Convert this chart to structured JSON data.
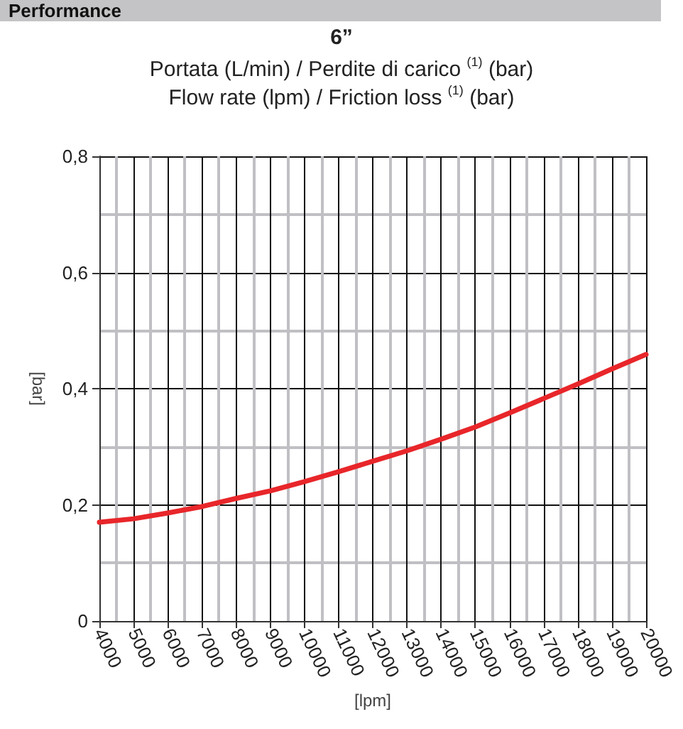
{
  "chart_data": {
    "type": "line",
    "title": "6”",
    "subtitle": "Portata (L/min) / Perdite di carico $^{(1)}$ (bar)\nFlow rate (lpm) / Friction loss $^{(1)}$ (bar)",
    "annotations": [
      "Performance"
    ],
    "xlabel": "[lpm]",
    "ylabel": "[bar]",
    "x": [
      4000,
      5000,
      6000,
      7000,
      8000,
      9000,
      10000,
      11000,
      12000,
      13000,
      14000,
      15000,
      16000,
      17000,
      18000,
      19000,
      20000
    ],
    "series": [
      {
        "color": "#e8262a",
        "values": [
          0.17,
          0.176,
          0.186,
          0.197,
          0.211,
          0.224,
          0.24,
          0.257,
          0.275,
          0.293,
          0.313,
          0.334,
          0.358,
          0.383,
          0.408,
          0.434,
          0.459
        ]
      }
    ],
    "xlim": [
      4000,
      20000
    ],
    "xticks": [
      4000,
      5000,
      6000,
      7000,
      8000,
      9000,
      10000,
      11000,
      12000,
      13000,
      14000,
      15000,
      16000,
      17000,
      18000,
      19000,
      20000
    ],
    "ylim": [
      0,
      0.8
    ],
    "yticks": [
      {
        "value": 0,
        "label": "0"
      },
      {
        "value": 0.2,
        "label": "0,2"
      },
      {
        "value": 0.4,
        "label": "0,4"
      },
      {
        "value": 0.6,
        "label": "0,6"
      },
      {
        "value": 0.8,
        "label": "0,8"
      }
    ],
    "grid": true,
    "marker": "none",
    "line_style": "solid"
  }
}
